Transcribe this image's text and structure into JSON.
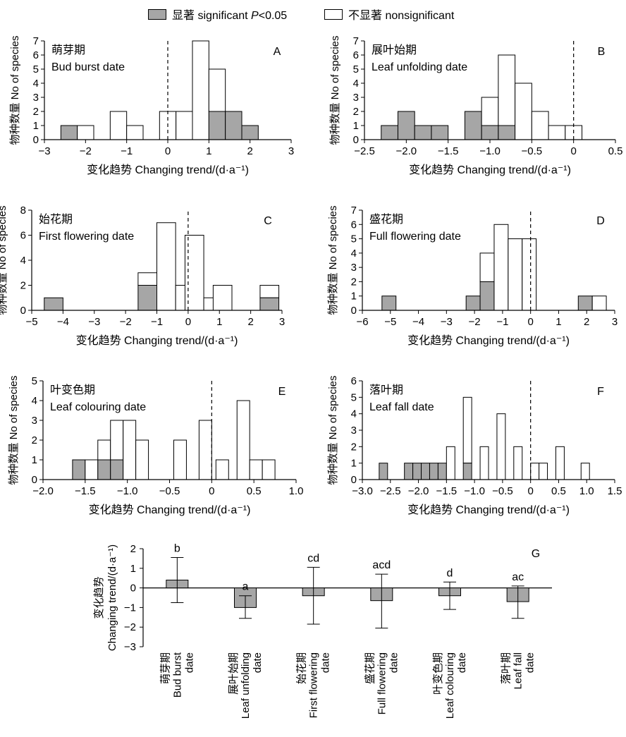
{
  "legend": {
    "significant": "显著 significant P<0.05",
    "significant_prefix": "显著 significant ",
    "significant_p": "P",
    "significant_suffix": "<0.05",
    "nonsignificant": "不显著 nonsignificant"
  },
  "colors": {
    "significant": "#a6a6a6",
    "nonsignificant": "#ffffff",
    "stroke": "#000000"
  },
  "chart_data": [
    {
      "type": "bar",
      "panel": "A",
      "title_cn": "萌芽期",
      "title_en": "Bud burst date",
      "xlabel": "变化趋势 Changing trend/(d·a⁻¹)",
      "ylabel": "物种数量 No of species",
      "xlim": [
        -3,
        3
      ],
      "ylim": [
        0,
        7
      ],
      "xticks": [
        "-3",
        "-2",
        "-1",
        "0",
        "1",
        "2",
        "3"
      ],
      "yticks": [
        "0",
        "1",
        "2",
        "3",
        "4",
        "5",
        "6",
        "7"
      ],
      "bin_width": 0.4,
      "vline": 0,
      "bins": [
        {
          "x0": -2.6,
          "total": 1,
          "sig": 1
        },
        {
          "x0": -2.2,
          "total": 1,
          "sig": 0
        },
        {
          "x0": -1.4,
          "total": 2,
          "sig": 0
        },
        {
          "x0": -1.0,
          "total": 1,
          "sig": 0
        },
        {
          "x0": -0.2,
          "total": 2,
          "sig": 0
        },
        {
          "x0": 0.2,
          "total": 2,
          "sig": 0
        },
        {
          "x0": 0.6,
          "total": 7,
          "sig": 0
        },
        {
          "x0": 1.0,
          "total": 5,
          "sig": 2
        },
        {
          "x0": 1.4,
          "total": 2,
          "sig": 2
        },
        {
          "x0": 1.8,
          "total": 1,
          "sig": 1
        }
      ]
    },
    {
      "type": "bar",
      "panel": "B",
      "title_cn": "展叶始期",
      "title_en": "Leaf unfolding date",
      "xlabel": "变化趋势 Changing trend/(d·a⁻¹)",
      "ylabel": "物种数量 No of species",
      "xlim": [
        -2.5,
        0.5
      ],
      "ylim": [
        0,
        7
      ],
      "xticks": [
        "-2.5",
        "-2.0",
        "-1.5",
        "-1.0",
        "-0.5",
        "0",
        "0.5"
      ],
      "yticks": [
        "0",
        "1",
        "2",
        "3",
        "4",
        "5",
        "6",
        "7"
      ],
      "bin_width": 0.2,
      "vline": 0,
      "bins": [
        {
          "x0": -2.3,
          "total": 1,
          "sig": 1
        },
        {
          "x0": -2.1,
          "total": 2,
          "sig": 2
        },
        {
          "x0": -1.9,
          "total": 1,
          "sig": 1
        },
        {
          "x0": -1.7,
          "total": 1,
          "sig": 1
        },
        {
          "x0": -1.3,
          "total": 2,
          "sig": 2
        },
        {
          "x0": -1.1,
          "total": 3,
          "sig": 1
        },
        {
          "x0": -0.9,
          "total": 6,
          "sig": 1
        },
        {
          "x0": -0.7,
          "total": 4,
          "sig": 0
        },
        {
          "x0": -0.5,
          "total": 2,
          "sig": 0
        },
        {
          "x0": -0.3,
          "total": 1,
          "sig": 0
        },
        {
          "x0": -0.1,
          "total": 1,
          "sig": 0
        }
      ]
    },
    {
      "type": "bar",
      "panel": "C",
      "title_cn": "始花期",
      "title_en": "First flowering date",
      "xlabel": "变化趋势 Changing trend/(d·a⁻¹)",
      "ylabel": "物种数量 No of species",
      "xlim": [
        -5,
        3
      ],
      "ylim": [
        0,
        8
      ],
      "xticks": [
        "-5",
        "-4",
        "-3",
        "-2",
        "-1",
        "0",
        "1",
        "2",
        "3"
      ],
      "yticks": [
        "0",
        "2",
        "4",
        "6",
        "8"
      ],
      "bin_width": 0.6,
      "vline": 0,
      "bins": [
        {
          "x0": -4.6,
          "total": 1,
          "sig": 1
        },
        {
          "x0": -1.6,
          "total": 3,
          "sig": 2
        },
        {
          "x0": -1.0,
          "total": 7,
          "sig": 0
        },
        {
          "x0": -0.4,
          "total": 2,
          "sig": 0
        },
        {
          "x0": -0.1,
          "total": 6,
          "sig": 0
        },
        {
          "x0": 0.5,
          "total": 1,
          "sig": 0
        },
        {
          "x0": 0.8,
          "total": 2,
          "sig": 0
        },
        {
          "x0": 2.3,
          "total": 2,
          "sig": 1
        }
      ]
    },
    {
      "type": "bar",
      "panel": "D",
      "title_cn": "盛花期",
      "title_en": "Full flowering date",
      "xlabel": "变化趋势 Changing trend/(d·a⁻¹)",
      "ylabel": "物种数量 No of species",
      "xlim": [
        -6,
        3
      ],
      "ylim": [
        0,
        7
      ],
      "xticks": [
        "-6",
        "-5",
        "-4",
        "-3",
        "-2",
        "-1",
        "0",
        "1",
        "2",
        "3"
      ],
      "yticks": [
        "0",
        "1",
        "2",
        "3",
        "4",
        "5",
        "6",
        "7"
      ],
      "bin_width": 0.5,
      "vline": 0,
      "bins": [
        {
          "x0": -5.3,
          "total": 1,
          "sig": 1
        },
        {
          "x0": -2.3,
          "total": 1,
          "sig": 1
        },
        {
          "x0": -1.8,
          "total": 4,
          "sig": 2
        },
        {
          "x0": -1.3,
          "total": 6,
          "sig": 0
        },
        {
          "x0": -0.8,
          "total": 5,
          "sig": 0
        },
        {
          "x0": -0.3,
          "total": 5,
          "sig": 0
        },
        {
          "x0": 1.7,
          "total": 1,
          "sig": 1
        },
        {
          "x0": 2.2,
          "total": 1,
          "sig": 0
        }
      ]
    },
    {
      "type": "bar",
      "panel": "E",
      "title_cn": "叶变色期",
      "title_en": "Leaf colouring date",
      "xlabel": "变化趋势 Changing trend/(d·a⁻¹)",
      "ylabel": "物种数量 No of species",
      "xlim": [
        -2.0,
        1.0
      ],
      "ylim": [
        0,
        5
      ],
      "xticks": [
        "-2.0",
        "-1.5",
        "-1.0",
        "-0.5",
        "0",
        "0.5",
        "1.0"
      ],
      "yticks": [
        "0",
        "1",
        "2",
        "3",
        "4",
        "5"
      ],
      "bin_width": 0.15,
      "vline": 0,
      "bins": [
        {
          "x0": -1.65,
          "total": 1,
          "sig": 1
        },
        {
          "x0": -1.5,
          "total": 1,
          "sig": 0
        },
        {
          "x0": -1.35,
          "total": 2,
          "sig": 1
        },
        {
          "x0": -1.2,
          "total": 3,
          "sig": 1
        },
        {
          "x0": -1.05,
          "total": 3,
          "sig": 0
        },
        {
          "x0": -0.9,
          "total": 2,
          "sig": 0
        },
        {
          "x0": -0.45,
          "total": 2,
          "sig": 0
        },
        {
          "x0": -0.15,
          "total": 3,
          "sig": 0
        },
        {
          "x0": 0.05,
          "total": 1,
          "sig": 0
        },
        {
          "x0": 0.3,
          "total": 4,
          "sig": 0
        },
        {
          "x0": 0.45,
          "total": 1,
          "sig": 0
        },
        {
          "x0": 0.6,
          "total": 1,
          "sig": 0
        }
      ]
    },
    {
      "type": "bar",
      "panel": "F",
      "title_cn": "落叶期",
      "title_en": "Leaf fall date",
      "xlabel": "变化趋势 Changing trend/(d·a⁻¹)",
      "ylabel": "物种数量 No of species",
      "xlim": [
        -3.0,
        1.5
      ],
      "ylim": [
        0,
        6
      ],
      "xticks": [
        "-3.0",
        "-2.5",
        "-2.0",
        "-1.5",
        "-1.0",
        "-0.5",
        "0",
        "0.5",
        "1.0",
        "1.5"
      ],
      "yticks": [
        "0",
        "1",
        "2",
        "3",
        "4",
        "5",
        "6"
      ],
      "bin_width": 0.15,
      "vline": 0,
      "bins": [
        {
          "x0": -2.7,
          "total": 1,
          "sig": 1
        },
        {
          "x0": -2.25,
          "total": 1,
          "sig": 1
        },
        {
          "x0": -2.1,
          "total": 1,
          "sig": 1
        },
        {
          "x0": -1.95,
          "total": 1,
          "sig": 1
        },
        {
          "x0": -1.8,
          "total": 1,
          "sig": 1
        },
        {
          "x0": -1.65,
          "total": 1,
          "sig": 1
        },
        {
          "x0": -1.5,
          "total": 2,
          "sig": 0
        },
        {
          "x0": -1.2,
          "total": 5,
          "sig": 1
        },
        {
          "x0": -0.9,
          "total": 2,
          "sig": 0
        },
        {
          "x0": -0.6,
          "total": 4,
          "sig": 0
        },
        {
          "x0": -0.3,
          "total": 2,
          "sig": 0
        },
        {
          "x0": 0.0,
          "total": 1,
          "sig": 0
        },
        {
          "x0": 0.15,
          "total": 1,
          "sig": 0
        },
        {
          "x0": 0.45,
          "total": 2,
          "sig": 0
        },
        {
          "x0": 0.9,
          "total": 1,
          "sig": 0
        }
      ]
    },
    {
      "type": "bar",
      "panel": "G",
      "error_bars": true,
      "ylabel_cn": "变化趋势",
      "ylabel_en": "Changing trend/(d·a⁻¹)",
      "ylim": [
        -3,
        2
      ],
      "yticks": [
        "-3",
        "-2",
        "-1",
        "0",
        "1",
        "2"
      ],
      "categories": [
        {
          "cn": "萌芽期",
          "en1": "Bud burst",
          "en2": "date"
        },
        {
          "cn": "展叶始期",
          "en1": "Leaf unfolding",
          "en2": "date"
        },
        {
          "cn": "始花期",
          "en1": "First flowering",
          "en2": "date"
        },
        {
          "cn": "盛花期",
          "en1": "Full flowering",
          "en2": "date"
        },
        {
          "cn": "叶变色期",
          "en1": "Leaf colouring",
          "en2": "date"
        },
        {
          "cn": "落叶期",
          "en1": "Leaf fall",
          "en2": "date"
        }
      ],
      "values": [
        0.4,
        -1.0,
        -0.4,
        -0.65,
        -0.4,
        -0.7
      ],
      "err_low": [
        -0.75,
        -1.55,
        -1.85,
        -2.05,
        -1.1,
        -1.55
      ],
      "err_high": [
        1.55,
        -0.4,
        1.05,
        0.7,
        0.3,
        0.1
      ],
      "letters": [
        "b",
        "a",
        "cd",
        "acd",
        "d",
        "ac"
      ]
    }
  ]
}
